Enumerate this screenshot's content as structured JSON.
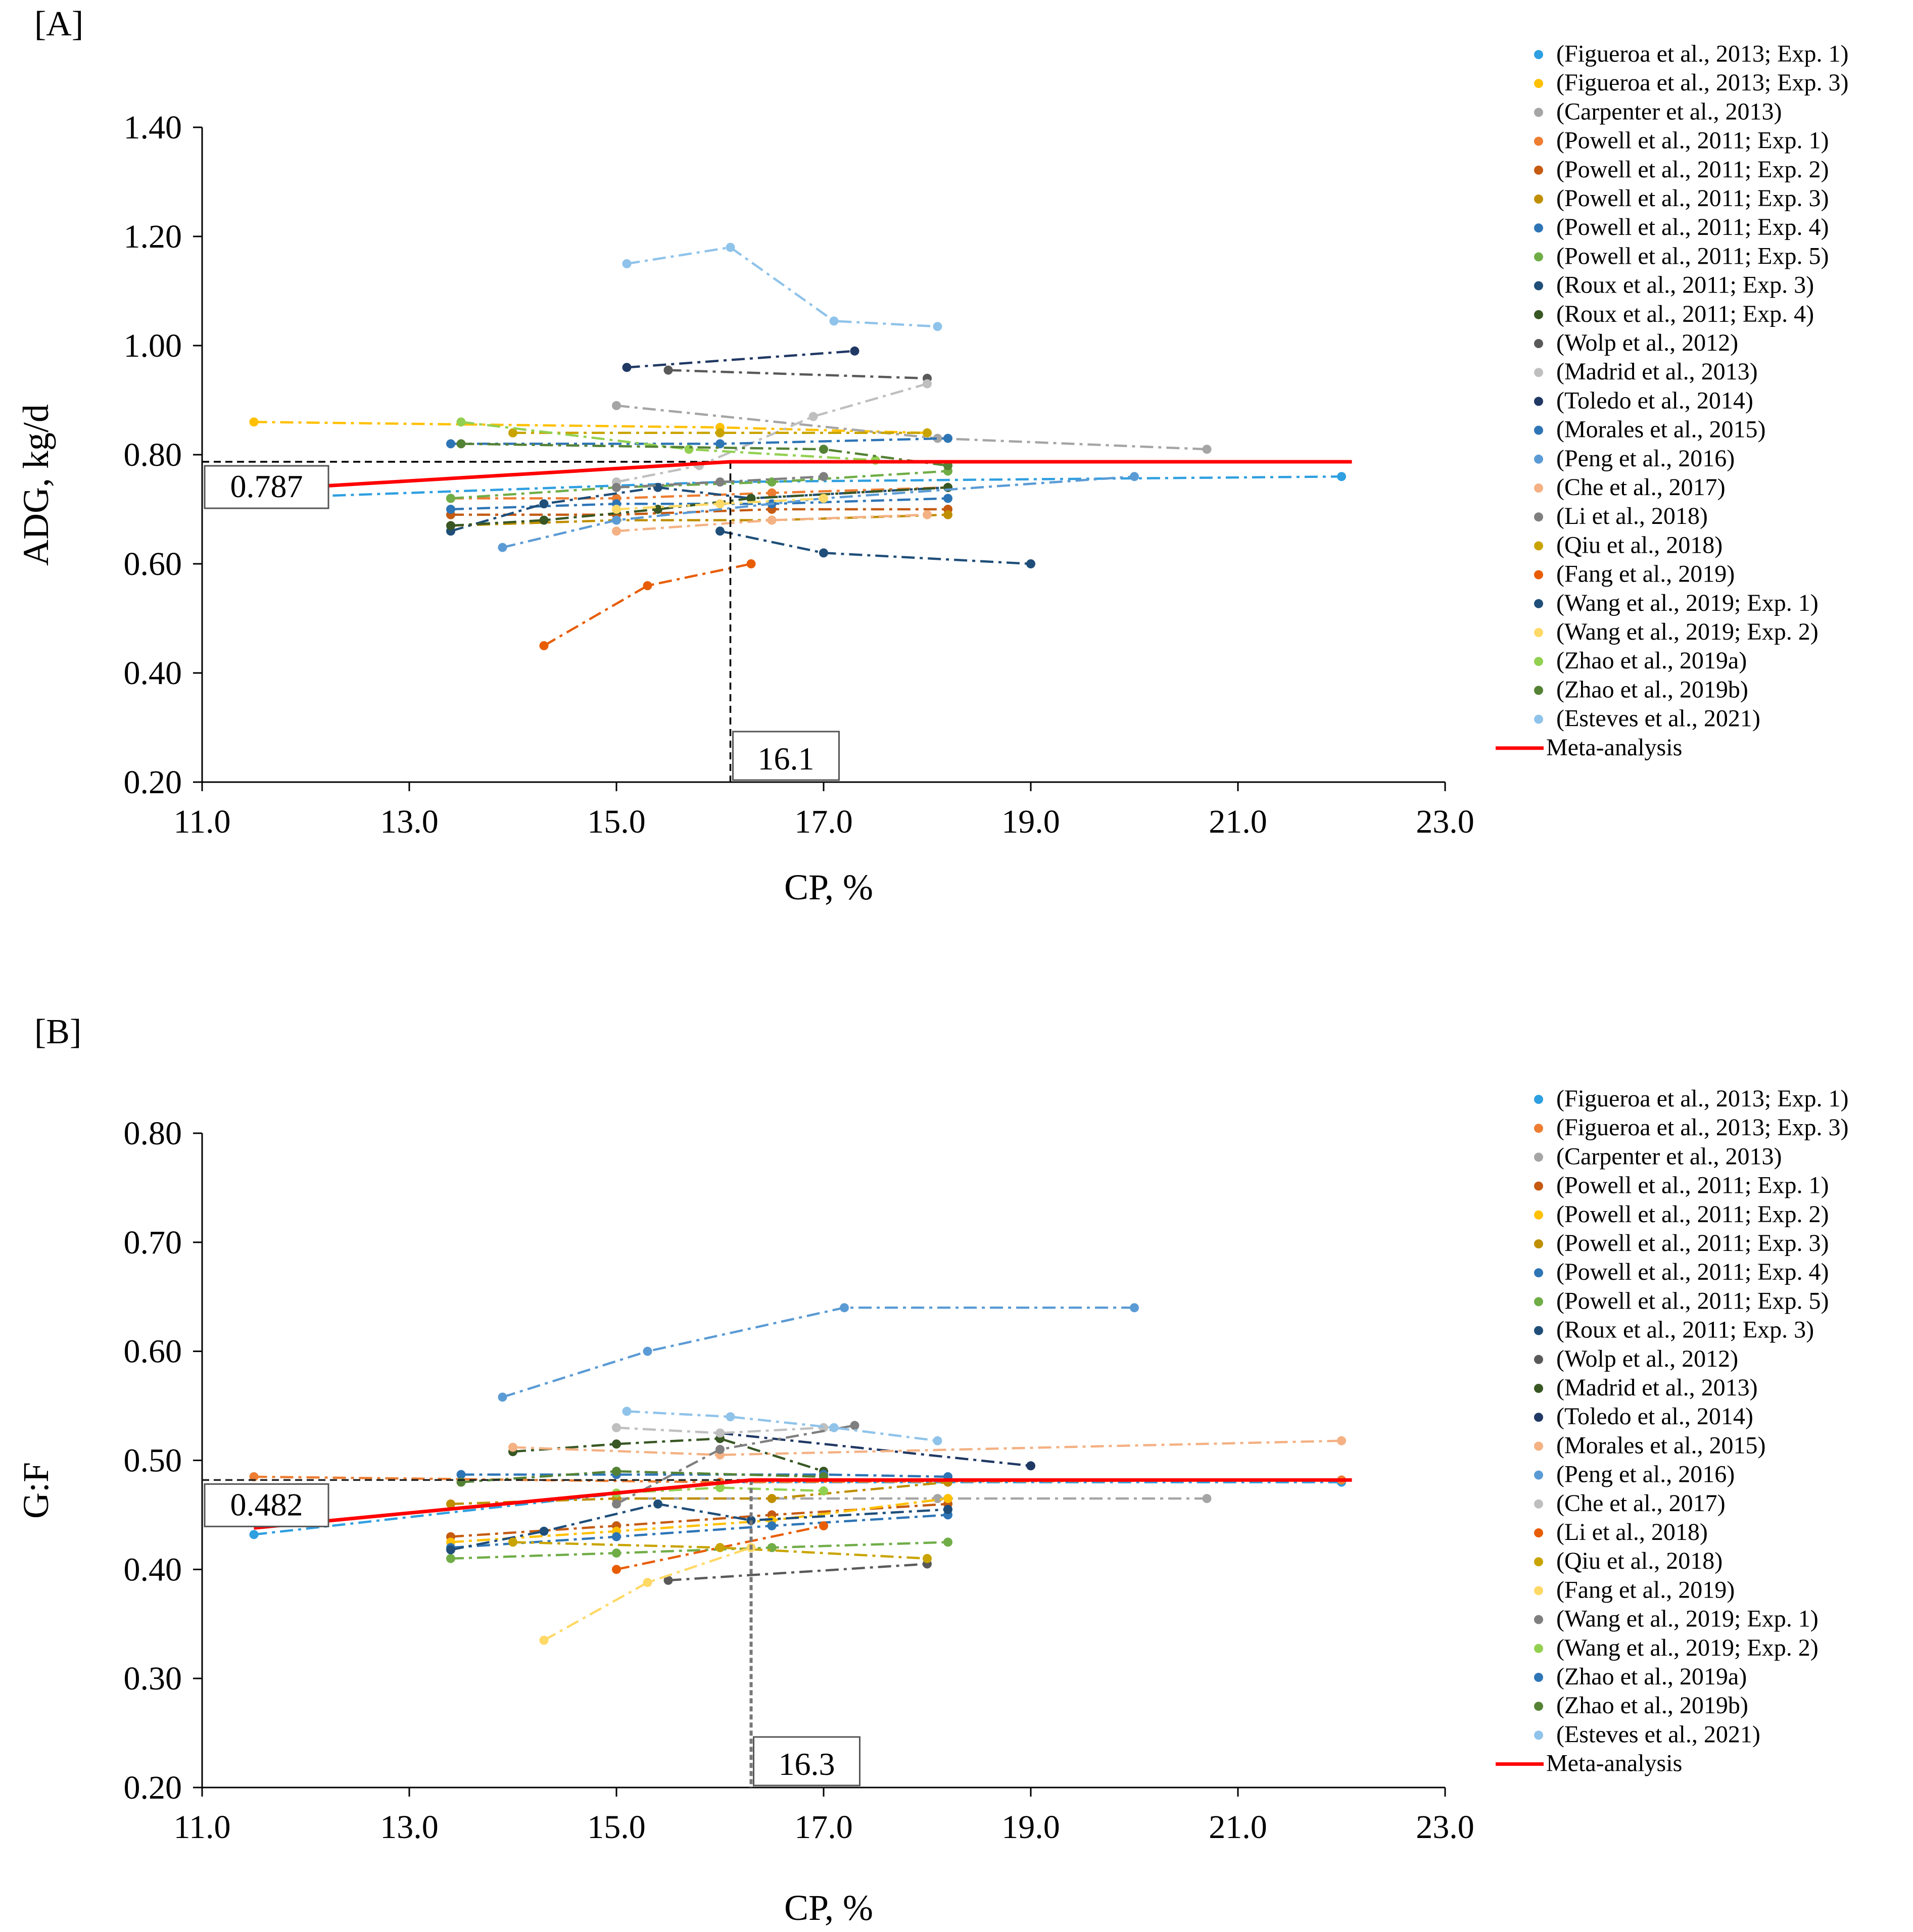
{
  "panels": [
    {
      "panel_label": "[A]",
      "callout_y": "0.787",
      "callout_x": "16.1",
      "chart_data": {
        "type": "scatter",
        "title": "",
        "xlabel": "CP, %",
        "ylabel": "ADG, kg/d",
        "xlim": [
          11.0,
          23.0
        ],
        "ylim": [
          0.2,
          1.4
        ],
        "xticks": [
          "11.0",
          "13.0",
          "15.0",
          "17.0",
          "19.0",
          "21.0",
          "23.0"
        ],
        "yticks": [
          "0.20",
          "0.40",
          "0.60",
          "0.80",
          "1.00",
          "1.20",
          "1.40"
        ],
        "grid": false,
        "legend_position": "right",
        "meta_analysis": {
          "name": "Meta-analysis",
          "color": "#ff0000",
          "x": [
            11.5,
            16.1,
            22.1
          ],
          "y": [
            0.735,
            0.787,
            0.787
          ]
        },
        "series": [
          {
            "name": "(Figueroa et al., 2013; Exp. 1)",
            "color": "#2e9fe0",
            "x": [
              11.5,
              16.0,
              22.0
            ],
            "y": [
              0.72,
              0.75,
              0.76
            ]
          },
          {
            "name": "(Figueroa et al., 2013; Exp. 3)",
            "color": "#ffc000",
            "x": [
              11.5,
              16.0,
              18.0
            ],
            "y": [
              0.86,
              0.85,
              0.84
            ]
          },
          {
            "name": "(Carpenter et al., 2013)",
            "color": "#a5a5a5",
            "x": [
              15.0,
              18.1,
              20.7
            ],
            "y": [
              0.89,
              0.83,
              0.81
            ]
          },
          {
            "name": "(Powell et al., 2011; Exp. 1)",
            "color": "#ed7d31",
            "x": [
              13.4,
              15.0,
              16.5,
              18.2
            ],
            "y": [
              0.72,
              0.72,
              0.73,
              0.74
            ]
          },
          {
            "name": "(Powell et al., 2011; Exp. 2)",
            "color": "#c55a11",
            "x": [
              13.4,
              15.0,
              16.5,
              18.2
            ],
            "y": [
              0.69,
              0.69,
              0.7,
              0.7
            ]
          },
          {
            "name": "(Powell et al., 2011; Exp. 3)",
            "color": "#bf8f00",
            "x": [
              13.4,
              15.0,
              16.5,
              18.2
            ],
            "y": [
              0.67,
              0.68,
              0.68,
              0.69
            ]
          },
          {
            "name": "(Powell et al., 2011; Exp. 4)",
            "color": "#2e75b6",
            "x": [
              13.4,
              15.0,
              16.5,
              18.2
            ],
            "y": [
              0.7,
              0.71,
              0.71,
              0.72
            ]
          },
          {
            "name": "(Powell et al., 2011; Exp. 5)",
            "color": "#70ad47",
            "x": [
              13.4,
              15.0,
              16.5,
              18.2
            ],
            "y": [
              0.72,
              0.74,
              0.75,
              0.77
            ]
          },
          {
            "name": "(Roux et al., 2011; Exp. 3)",
            "color": "#1f4e79",
            "x": [
              13.4,
              14.3,
              15.4,
              16.3,
              18.2
            ],
            "y": [
              0.66,
              0.71,
              0.74,
              0.72,
              0.74
            ]
          },
          {
            "name": "(Roux et al., 2011; Exp. 4)",
            "color": "#385723",
            "x": [
              13.4,
              14.3,
              15.4,
              16.3,
              18.2
            ],
            "y": [
              0.67,
              0.68,
              0.7,
              0.72,
              0.74
            ]
          },
          {
            "name": "(Wolp et al., 2012)",
            "color": "#595959",
            "x": [
              15.5,
              18.0
            ],
            "y": [
              0.955,
              0.94
            ]
          },
          {
            "name": "(Madrid et al., 2013)",
            "color": "#bfbfbf",
            "x": [
              15.0,
              15.8,
              16.9,
              18.0
            ],
            "y": [
              0.75,
              0.78,
              0.87,
              0.93
            ]
          },
          {
            "name": "(Toledo et al., 2014)",
            "color": "#203864",
            "x": [
              15.1,
              17.3
            ],
            "y": [
              0.96,
              0.99
            ]
          },
          {
            "name": "(Morales et al., 2015)",
            "color": "#2e75b6",
            "x": [
              13.4,
              16.0,
              18.2
            ],
            "y": [
              0.82,
              0.82,
              0.83
            ]
          },
          {
            "name": "(Peng et al., 2016)",
            "color": "#5b9bd5",
            "x": [
              13.9,
              15.0,
              17.0,
              20.0
            ],
            "y": [
              0.63,
              0.68,
              0.72,
              0.76
            ]
          },
          {
            "name": "(Che et al., 2017)",
            "color": "#f4b183",
            "x": [
              15.0,
              16.5,
              18.0
            ],
            "y": [
              0.66,
              0.68,
              0.69
            ]
          },
          {
            "name": "(Li et al., 2018)",
            "color": "#7f7f7f",
            "x": [
              15.0,
              16.0,
              17.0
            ],
            "y": [
              0.74,
              0.75,
              0.76
            ]
          },
          {
            "name": "(Qiu et al., 2018)",
            "color": "#c9a400",
            "x": [
              14.0,
              16.0,
              18.0
            ],
            "y": [
              0.84,
              0.84,
              0.84
            ]
          },
          {
            "name": "(Fang et al., 2019)",
            "color": "#e85d04",
            "x": [
              14.3,
              15.3,
              16.3
            ],
            "y": [
              0.45,
              0.56,
              0.6
            ]
          },
          {
            "name": "(Wang et al., 2019; Exp. 1)",
            "color": "#1f4e79",
            "x": [
              16.0,
              17.0,
              19.0
            ],
            "y": [
              0.66,
              0.62,
              0.6
            ]
          },
          {
            "name": "(Wang et al., 2019; Exp. 2)",
            "color": "#ffd966",
            "x": [
              15.0,
              16.0,
              17.0
            ],
            "y": [
              0.7,
              0.71,
              0.72
            ]
          },
          {
            "name": "(Zhao et al., 2019a)",
            "color": "#92d050",
            "x": [
              13.5,
              15.7,
              17.5
            ],
            "y": [
              0.86,
              0.81,
              0.79
            ]
          },
          {
            "name": "(Zhao et al., 2019b)",
            "color": "#548235",
            "x": [
              13.5,
              17.0,
              18.2
            ],
            "y": [
              0.82,
              0.81,
              0.78
            ]
          },
          {
            "name": "(Esteves et al., 2021)",
            "color": "#8fc3ea",
            "x": [
              15.1,
              16.1,
              17.1,
              18.1
            ],
            "y": [
              1.15,
              1.18,
              1.045,
              1.035
            ]
          }
        ]
      }
    },
    {
      "panel_label": "[B]",
      "callout_y": "0.482",
      "callout_x": "16.3",
      "chart_data": {
        "type": "scatter",
        "title": "",
        "xlabel": "CP, %",
        "ylabel": "G:F",
        "xlim": [
          11.0,
          23.0
        ],
        "ylim": [
          0.2,
          0.8
        ],
        "xticks": [
          "11.0",
          "13.0",
          "15.0",
          "17.0",
          "19.0",
          "21.0",
          "23.0"
        ],
        "yticks": [
          "0.20",
          "0.30",
          "0.40",
          "0.50",
          "0.60",
          "0.70",
          "0.80"
        ],
        "grid": false,
        "legend_position": "right",
        "meta_analysis": {
          "name": "Meta-analysis",
          "color": "#ff0000",
          "x": [
            11.5,
            16.3,
            22.1
          ],
          "y": [
            0.438,
            0.482,
            0.482
          ]
        },
        "series": [
          {
            "name": "(Figueroa et al., 2013; Exp. 1)",
            "color": "#2e9fe0",
            "x": [
              11.5,
              16.0,
              22.0
            ],
            "y": [
              0.432,
              0.48,
              0.48
            ]
          },
          {
            "name": "(Figueroa et al., 2013; Exp. 3)",
            "color": "#ed7d31",
            "x": [
              11.5,
              16.0,
              22.0
            ],
            "y": [
              0.485,
              0.48,
              0.482
            ]
          },
          {
            "name": "(Carpenter et al., 2013)",
            "color": "#a5a5a5",
            "x": [
              15.0,
              18.1,
              20.7
            ],
            "y": [
              0.465,
              0.465,
              0.465
            ]
          },
          {
            "name": "(Powell et al., 2011; Exp. 1)",
            "color": "#c55a11",
            "x": [
              13.4,
              15.0,
              16.5,
              18.2
            ],
            "y": [
              0.43,
              0.44,
              0.45,
              0.46
            ]
          },
          {
            "name": "(Powell et al., 2011; Exp. 2)",
            "color": "#ffc000",
            "x": [
              13.4,
              15.0,
              16.5,
              18.2
            ],
            "y": [
              0.425,
              0.435,
              0.445,
              0.465
            ]
          },
          {
            "name": "(Powell et al., 2011; Exp. 3)",
            "color": "#bf8f00",
            "x": [
              13.4,
              15.0,
              16.5,
              18.2
            ],
            "y": [
              0.46,
              0.465,
              0.465,
              0.48
            ]
          },
          {
            "name": "(Powell et al., 2011; Exp. 4)",
            "color": "#2e75b6",
            "x": [
              13.4,
              15.0,
              16.5,
              18.2
            ],
            "y": [
              0.42,
              0.43,
              0.44,
              0.45
            ]
          },
          {
            "name": "(Powell et al., 2011; Exp. 5)",
            "color": "#70ad47",
            "x": [
              13.4,
              15.0,
              16.5,
              18.2
            ],
            "y": [
              0.41,
              0.415,
              0.42,
              0.425
            ]
          },
          {
            "name": "(Roux et al., 2011; Exp. 3)",
            "color": "#1f4e79",
            "x": [
              13.4,
              14.3,
              15.4,
              16.3,
              18.2
            ],
            "y": [
              0.418,
              0.435,
              0.46,
              0.445,
              0.455
            ]
          },
          {
            "name": "(Wolp et al., 2012)",
            "color": "#595959",
            "x": [
              15.5,
              18.0
            ],
            "y": [
              0.39,
              0.405
            ]
          },
          {
            "name": "(Madrid et al., 2013)",
            "color": "#385723",
            "x": [
              14.0,
              15.0,
              16.0,
              17.0
            ],
            "y": [
              0.508,
              0.515,
              0.52,
              0.49
            ]
          },
          {
            "name": "(Toledo et al., 2014)",
            "color": "#203864",
            "x": [
              16.0,
              19.0
            ],
            "y": [
              0.525,
              0.495
            ]
          },
          {
            "name": "(Morales et al., 2015)",
            "color": "#f4b183",
            "x": [
              14.0,
              16.0,
              22.0
            ],
            "y": [
              0.512,
              0.505,
              0.518
            ]
          },
          {
            "name": "(Peng et al., 2016)",
            "color": "#5b9bd5",
            "x": [
              13.9,
              15.3,
              17.2,
              20.0
            ],
            "y": [
              0.558,
              0.6,
              0.64,
              0.64
            ]
          },
          {
            "name": "(Che et al., 2017)",
            "color": "#bfbfbf",
            "x": [
              15.0,
              16.0,
              17.0
            ],
            "y": [
              0.53,
              0.525,
              0.53
            ]
          },
          {
            "name": "(Li et al., 2018)",
            "color": "#e85d04",
            "x": [
              15.0,
              16.0,
              17.0
            ],
            "y": [
              0.4,
              0.42,
              0.44
            ]
          },
          {
            "name": "(Qiu et al., 2018)",
            "color": "#c9a400",
            "x": [
              14.0,
              16.0,
              18.0
            ],
            "y": [
              0.425,
              0.42,
              0.41
            ]
          },
          {
            "name": "(Fang et al., 2019)",
            "color": "#ffd966",
            "x": [
              14.3,
              15.3,
              16.3
            ],
            "y": [
              0.335,
              0.388,
              0.42
            ]
          },
          {
            "name": "(Wang et al., 2019; Exp. 1)",
            "color": "#7f7f7f",
            "x": [
              15.0,
              16.0,
              17.3
            ],
            "y": [
              0.46,
              0.51,
              0.532
            ]
          },
          {
            "name": "(Wang et al., 2019; Exp. 2)",
            "color": "#92d050",
            "x": [
              15.0,
              16.0,
              17.0
            ],
            "y": [
              0.47,
              0.475,
              0.472
            ]
          },
          {
            "name": "(Zhao et al., 2019a)",
            "color": "#2e75b6",
            "x": [
              13.5,
              15.0,
              17.0,
              18.2
            ],
            "y": [
              0.487,
              0.487,
              0.487,
              0.485
            ]
          },
          {
            "name": "(Zhao et al., 2019b)",
            "color": "#548235",
            "x": [
              13.5,
              15.0,
              17.0
            ],
            "y": [
              0.48,
              0.49,
              0.485
            ]
          },
          {
            "name": "(Esteves et al., 2021)",
            "color": "#8fc3ea",
            "x": [
              15.1,
              16.1,
              17.1,
              18.1
            ],
            "y": [
              0.545,
              0.54,
              0.53,
              0.518
            ]
          }
        ]
      }
    }
  ]
}
